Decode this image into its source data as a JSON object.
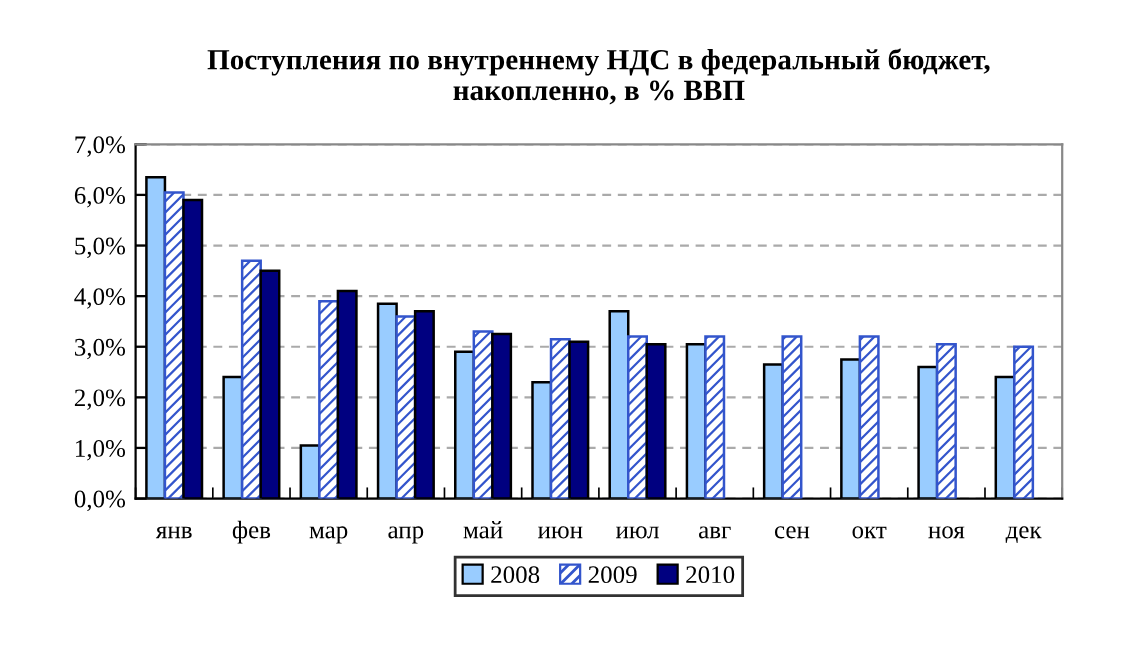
{
  "chart_data": {
    "type": "bar",
    "title": "Поступления по внутреннему НДС в федеральный бюджет,\nнакопленно, в % ВВП",
    "categories": [
      "янв",
      "фев",
      "мар",
      "апр",
      "май",
      "июн",
      "июл",
      "авг",
      "сен",
      "окт",
      "ноя",
      "дек"
    ],
    "series": [
      {
        "name": "2008",
        "color": "#99ccff",
        "values": [
          6.35,
          2.4,
          1.05,
          3.85,
          2.9,
          2.3,
          3.7,
          3.05,
          2.65,
          2.75,
          2.6,
          2.4
        ]
      },
      {
        "name": "2009",
        "color": "#3355cc",
        "values": [
          6.05,
          4.7,
          3.9,
          3.6,
          3.3,
          3.15,
          3.2,
          3.2,
          3.2,
          3.2,
          3.05,
          3.0
        ]
      },
      {
        "name": "2010",
        "color": "#000080",
        "values": [
          5.9,
          4.5,
          4.1,
          3.7,
          3.25,
          3.1,
          3.05,
          null,
          null,
          null,
          null,
          null
        ]
      }
    ],
    "ylim": [
      0,
      7
    ],
    "yticks": [
      {
        "value": 0,
        "label": "0,0%"
      },
      {
        "value": 1,
        "label": "1,0%"
      },
      {
        "value": 2,
        "label": "2,0%"
      },
      {
        "value": 3,
        "label": "3,0%"
      },
      {
        "value": 4,
        "label": "4,0%"
      },
      {
        "value": 5,
        "label": "5,0%"
      },
      {
        "value": 6,
        "label": "6,0%"
      },
      {
        "value": 7,
        "label": "7,0%"
      }
    ],
    "grid": "y",
    "legend": "bottom"
  }
}
